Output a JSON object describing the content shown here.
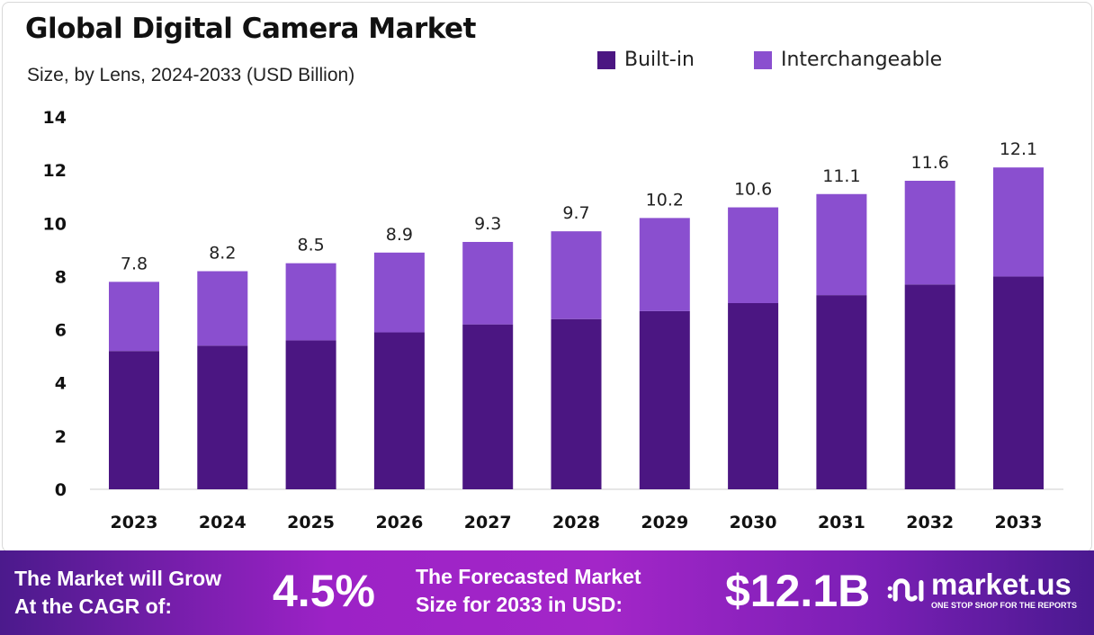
{
  "chart_data": {
    "type": "bar",
    "stacked": true,
    "title": "Global Digital Camera Market",
    "subtitle": "Size, by Lens, 2024-2033 (USD Billion)",
    "categories": [
      "2023",
      "2024",
      "2025",
      "2026",
      "2027",
      "2028",
      "2029",
      "2030",
      "2031",
      "2032",
      "2033"
    ],
    "series": [
      {
        "name": "Built-in",
        "color": "#4b1682",
        "values": [
          5.2,
          5.4,
          5.6,
          5.9,
          6.2,
          6.4,
          6.7,
          7.0,
          7.3,
          7.7,
          8.0
        ]
      },
      {
        "name": "Interchangeable",
        "color": "#8a4fcf",
        "values": [
          2.6,
          2.8,
          2.9,
          3.0,
          3.1,
          3.3,
          3.5,
          3.6,
          3.8,
          3.9,
          4.1
        ]
      }
    ],
    "totals": [
      "7.8",
      "8.2",
      "8.5",
      "8.9",
      "9.3",
      "9.7",
      "10.2",
      "10.6",
      "11.1",
      "11.6",
      "12.1"
    ],
    "totals_num": [
      7.8,
      8.2,
      8.5,
      8.9,
      9.3,
      9.7,
      10.2,
      10.6,
      11.1,
      11.6,
      12.1
    ],
    "yticks": [
      "0",
      "2",
      "4",
      "6",
      "8",
      "10",
      "12",
      "14"
    ],
    "ylim": [
      0,
      14
    ],
    "grid": false,
    "legend": "top-right",
    "xlabel": "",
    "ylabel": ""
  },
  "footer": {
    "cagr_text_1": "The Market will Grow",
    "cagr_text_2": "At the CAGR of:",
    "cagr_value": "4.5%",
    "forecast_text_1": "The Forecasted Market",
    "forecast_text_2": "Size for 2033 in USD:",
    "forecast_value": "$12.1B",
    "logo_name": "market.us",
    "logo_tagline": "ONE STOP SHOP FOR THE REPORTS"
  }
}
